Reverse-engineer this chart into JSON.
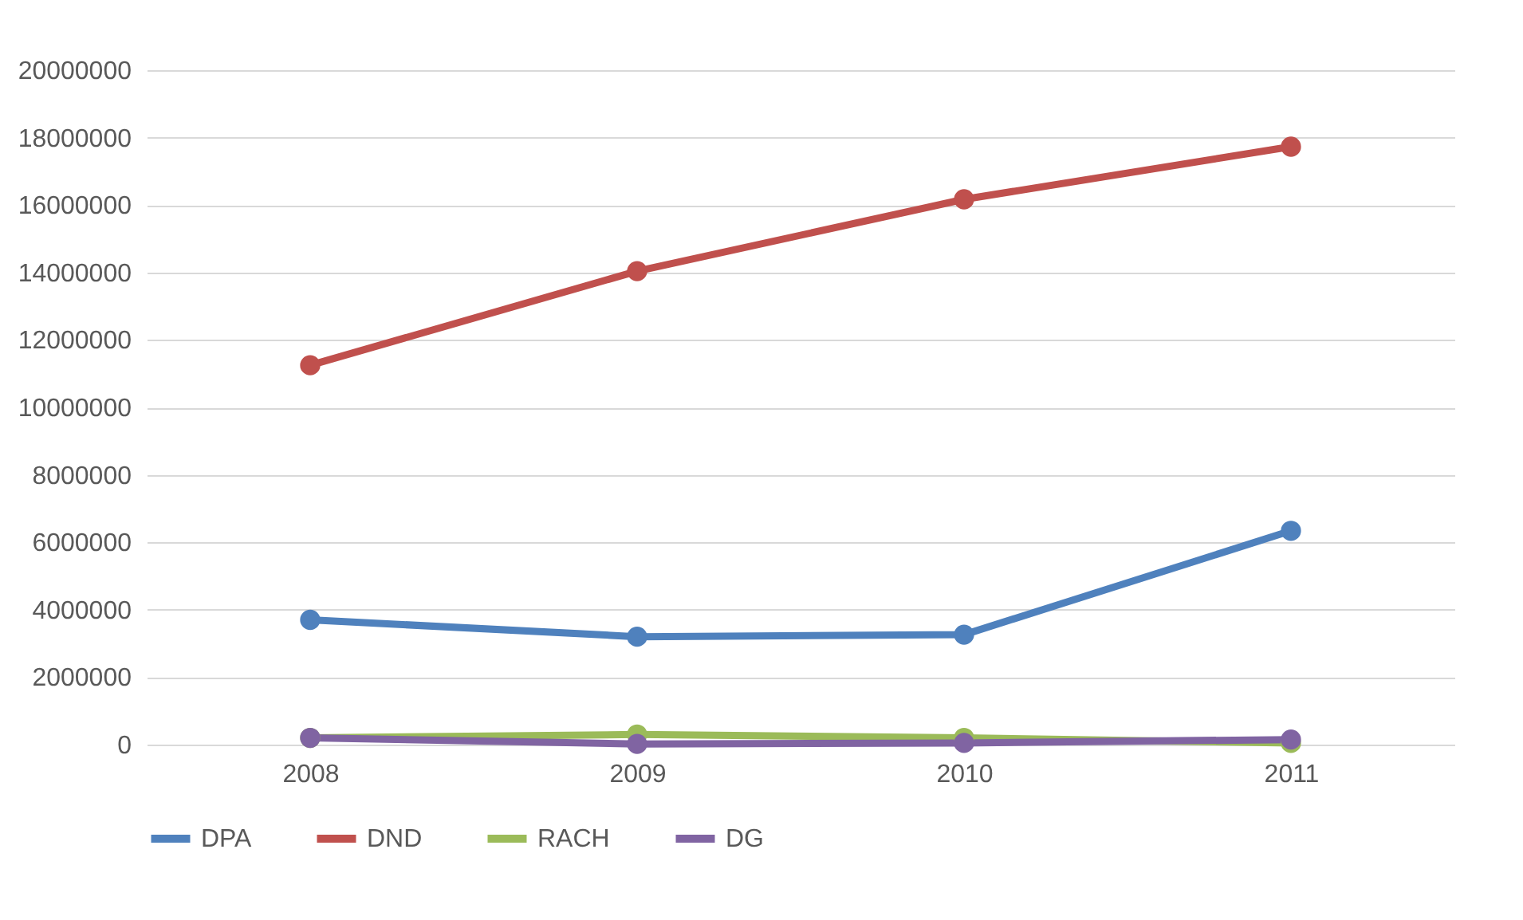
{
  "chart_data": {
    "type": "line",
    "categories": [
      "2008",
      "2009",
      "2010",
      "2011"
    ],
    "series": [
      {
        "name": "DPA",
        "color": "#4f81bd",
        "values": [
          3700000,
          3200000,
          3260000,
          6340000
        ]
      },
      {
        "name": "DND",
        "color": "#c0504d",
        "values": [
          11250000,
          14040000,
          16170000,
          17730000
        ]
      },
      {
        "name": "RACH",
        "color": "#9bbb59",
        "values": [
          200000,
          300000,
          200000,
          50000
        ]
      },
      {
        "name": "DG",
        "color": "#8064a2",
        "values": [
          200000,
          20000,
          50000,
          150000
        ]
      }
    ],
    "ylim": [
      0,
      20000000
    ],
    "yticks": [
      0,
      2000000,
      4000000,
      6000000,
      8000000,
      10000000,
      12000000,
      14000000,
      16000000,
      18000000,
      20000000
    ],
    "grid": "y",
    "legend": "bottom",
    "marker": "circle",
    "line_style": "solid"
  }
}
